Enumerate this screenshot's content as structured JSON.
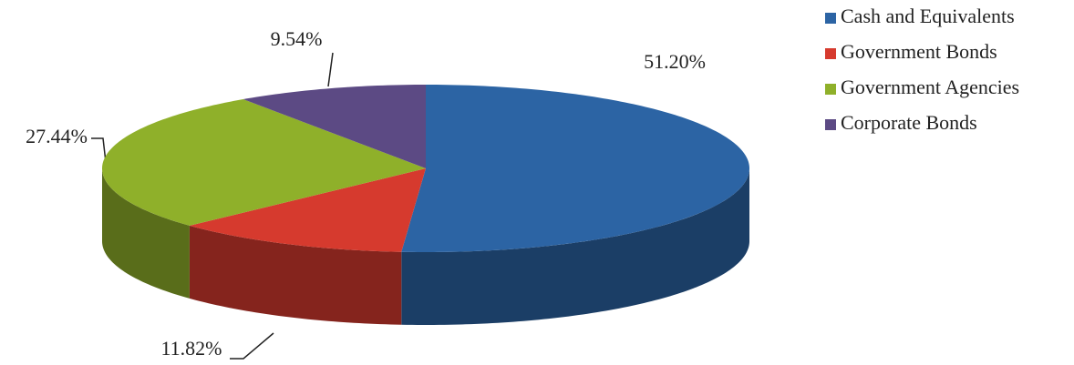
{
  "chart_data": {
    "type": "pie",
    "categories": [
      "Cash and Equivalents",
      "Government Bonds",
      "Government Agencies",
      "Corporate Bonds"
    ],
    "values": [
      51.2,
      11.82,
      27.44,
      9.54
    ],
    "value_labels": [
      "51.20%",
      "11.82%",
      "27.44%",
      "9.54%"
    ],
    "colors": [
      "#2c64a4",
      "#d63a2e",
      "#8fb02a",
      "#5c4a84"
    ],
    "legend": "top-right"
  }
}
